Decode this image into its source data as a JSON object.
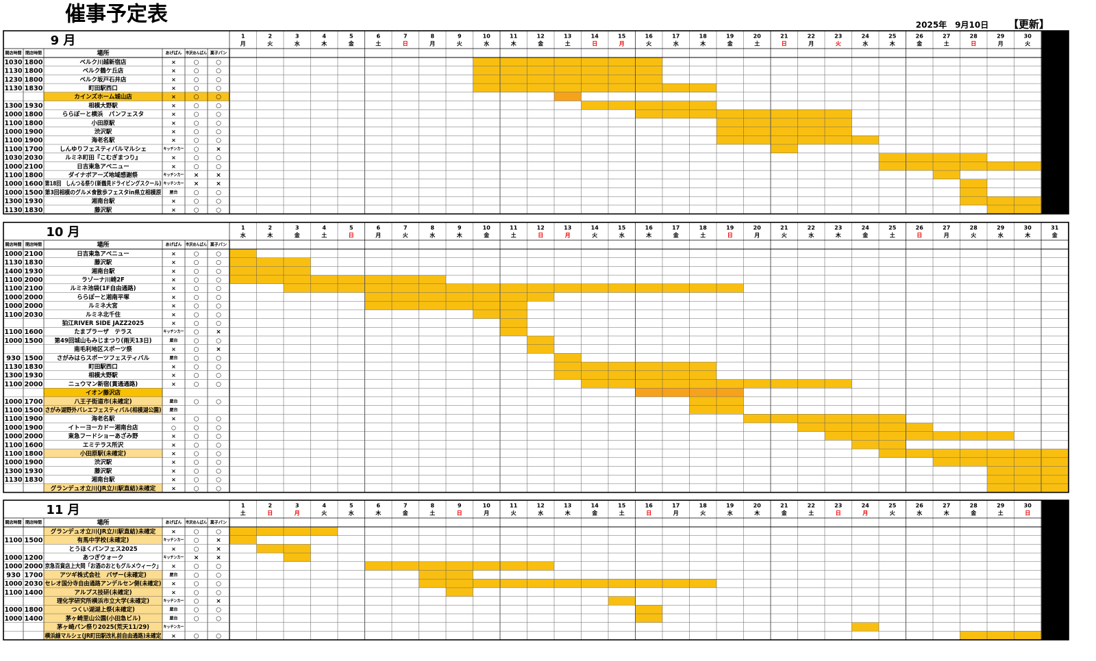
{
  "title": "催事予定表",
  "updated_date": "2025年　9月10日",
  "updated_label": "【更新】",
  "headers": [
    "開店時間",
    "閉店時間",
    "場所",
    "あげぱん",
    "市沢めんぱん",
    "菓子パン"
  ],
  "span_color": "#f9bf10",
  "sections": [
    {
      "month": "9 月",
      "red_days": [
        7,
        14,
        15,
        21,
        23,
        28
      ],
      "days": [
        [
          1,
          "月"
        ],
        [
          2,
          "火"
        ],
        [
          3,
          "水"
        ],
        [
          4,
          "木"
        ],
        [
          5,
          "金"
        ],
        [
          6,
          "土"
        ],
        [
          7,
          "日"
        ],
        [
          8,
          "月"
        ],
        [
          9,
          "火"
        ],
        [
          10,
          "水"
        ],
        [
          11,
          "木"
        ],
        [
          12,
          "金"
        ],
        [
          13,
          "土"
        ],
        [
          14,
          "日"
        ],
        [
          15,
          "月"
        ],
        [
          16,
          "火"
        ],
        [
          17,
          "水"
        ],
        [
          18,
          "木"
        ],
        [
          19,
          "金"
        ],
        [
          20,
          "土"
        ],
        [
          21,
          "日"
        ],
        [
          22,
          "月"
        ],
        [
          23,
          "火"
        ],
        [
          24,
          "水"
        ],
        [
          25,
          "木"
        ],
        [
          26,
          "金"
        ],
        [
          27,
          "土"
        ],
        [
          28,
          "日"
        ],
        [
          29,
          "月"
        ],
        [
          30,
          "火"
        ]
      ],
      "rows": [
        {
          "open": "1030",
          "close": "1800",
          "place": "ベルク川越新宿店",
          "a": "×",
          "b": "○",
          "c": "○",
          "span": [
            10,
            16
          ]
        },
        {
          "open": "1130",
          "close": "1800",
          "place": "ベルク鶴ケ丘店",
          "a": "×",
          "b": "○",
          "c": "○",
          "span": [
            10,
            16
          ]
        },
        {
          "open": "1230",
          "close": "1800",
          "place": "ベルク坂戸石井店",
          "a": "×",
          "b": "○",
          "c": "○",
          "span": [
            10,
            16
          ]
        },
        {
          "open": "1130",
          "close": "1830",
          "place": "町田駅西口",
          "a": "×",
          "b": "○",
          "c": "○",
          "span": [
            10,
            18
          ]
        },
        {
          "place": "カインズホーム城山店",
          "a": "×",
          "b": "○",
          "c": "○",
          "fill": "#f9c21a",
          "fill_wide": true,
          "span": [
            13,
            13
          ],
          "span_color": "#f7a21b"
        },
        {
          "open": "1300",
          "close": "1930",
          "place": "相模大野駅",
          "a": "×",
          "b": "○",
          "c": "○",
          "span": [
            14,
            18
          ]
        },
        {
          "open": "1000",
          "close": "1800",
          "place": "ららぽーと横浜　パンフェスタ",
          "a": "×",
          "b": "○",
          "c": "○",
          "span": [
            16,
            23
          ]
        },
        {
          "open": "1100",
          "close": "1800",
          "place": "小田原駅",
          "a": "×",
          "b": "○",
          "c": "○",
          "span": [
            19,
            23
          ]
        },
        {
          "open": "1000",
          "close": "1900",
          "place": "渋沢駅",
          "a": "×",
          "b": "○",
          "c": "○",
          "span": [
            19,
            23
          ]
        },
        {
          "open": "1100",
          "close": "1900",
          "place": "海老名駅",
          "a": "×",
          "b": "○",
          "c": "○",
          "span": [
            19,
            24
          ]
        },
        {
          "open": "1100",
          "close": "1700",
          "place": "しんゆりフェスティバルマルシェ",
          "a": "キッチンカー",
          "b": "○",
          "c": "×",
          "span": [
            21,
            21
          ]
        },
        {
          "open": "1030",
          "close": "2030",
          "place": "ルミネ町田『こむぎまつり』",
          "a": "×",
          "b": "○",
          "c": "○",
          "span": [
            25,
            28
          ]
        },
        {
          "open": "1000",
          "close": "2100",
          "place": "日吉東急アベニュー",
          "a": "×",
          "b": "○",
          "c": "○",
          "span": [
            25,
            30
          ]
        },
        {
          "open": "1100",
          "close": "1800",
          "place": "ダイナボアーズ地域感謝祭",
          "a": "キッチンカー",
          "b": "×",
          "c": "×",
          "span": [
            27,
            27
          ]
        },
        {
          "open": "1000",
          "close": "1600",
          "place": "第18回　しんつる祭り(新鶴見ドライビングスクール)",
          "a": "キッチンカー",
          "b": "×",
          "c": "×",
          "span": [
            28,
            28
          ]
        },
        {
          "open": "1000",
          "close": "1500",
          "place": "第3回相模のグルメ食散歩フェスタin県立相模原",
          "a": "屋台",
          "b": "○",
          "c": "○",
          "span": [
            28,
            28
          ]
        },
        {
          "open": "1300",
          "close": "1930",
          "place": "湘南台駅",
          "a": "×",
          "b": "○",
          "c": "○",
          "span": [
            28,
            30
          ]
        },
        {
          "open": "1130",
          "close": "1830",
          "place": "藤沢駅",
          "a": "×",
          "b": "○",
          "c": "○",
          "span": [
            29,
            30
          ]
        }
      ]
    },
    {
      "month": "10 月",
      "red_days": [
        5,
        12,
        13,
        19,
        26
      ],
      "days": [
        [
          1,
          "水"
        ],
        [
          2,
          "木"
        ],
        [
          3,
          "金"
        ],
        [
          4,
          "土"
        ],
        [
          5,
          "日"
        ],
        [
          6,
          "月"
        ],
        [
          7,
          "火"
        ],
        [
          8,
          "水"
        ],
        [
          9,
          "木"
        ],
        [
          10,
          "金"
        ],
        [
          11,
          "土"
        ],
        [
          12,
          "日"
        ],
        [
          13,
          "月"
        ],
        [
          14,
          "火"
        ],
        [
          15,
          "水"
        ],
        [
          16,
          "木"
        ],
        [
          17,
          "金"
        ],
        [
          18,
          "土"
        ],
        [
          19,
          "日"
        ],
        [
          20,
          "月"
        ],
        [
          21,
          "火"
        ],
        [
          22,
          "水"
        ],
        [
          23,
          "木"
        ],
        [
          24,
          "金"
        ],
        [
          25,
          "土"
        ],
        [
          26,
          "日"
        ],
        [
          27,
          "月"
        ],
        [
          28,
          "火"
        ],
        [
          29,
          "水"
        ],
        [
          30,
          "木"
        ],
        [
          31,
          "金"
        ]
      ],
      "rows": [
        {
          "open": "1000",
          "close": "2100",
          "place": "日吉東急アベニュー",
          "a": "×",
          "b": "○",
          "c": "○",
          "span": [
            1,
            1
          ]
        },
        {
          "open": "1130",
          "close": "1830",
          "place": "藤沢駅",
          "a": "×",
          "b": "○",
          "c": "○",
          "span": [
            1,
            3
          ]
        },
        {
          "open": "1400",
          "close": "1930",
          "place": "湘南台駅",
          "a": "×",
          "b": "○",
          "c": "○",
          "span": [
            1,
            3
          ]
        },
        {
          "open": "1100",
          "close": "2000",
          "place": "ラゾーナ川崎2F",
          "a": "×",
          "b": "○",
          "c": "○",
          "span": [
            1,
            8
          ]
        },
        {
          "open": "1100",
          "close": "2100",
          "place": "ルミネ池袋(1F自由通路)",
          "a": "×",
          "b": "○",
          "c": "○",
          "span": [
            3,
            19
          ]
        },
        {
          "open": "1000",
          "close": "2000",
          "place": "ららぽーと湘南平塚",
          "a": "×",
          "b": "○",
          "c": "○",
          "span": [
            6,
            12
          ]
        },
        {
          "open": "1000",
          "close": "2000",
          "place": "ルミネ大宮",
          "a": "×",
          "b": "○",
          "c": "○",
          "span": [
            6,
            11
          ]
        },
        {
          "open": "1100",
          "close": "2030",
          "place": "ルミネ北千住",
          "a": "×",
          "b": "○",
          "c": "○",
          "span": [
            10,
            11
          ]
        },
        {
          "place": "狛江RIVER SIDE JAZZ2025",
          "a": "×",
          "b": "○",
          "c": "○",
          "span": [
            11,
            11
          ]
        },
        {
          "open": "1100",
          "close": "1600",
          "place": "たまプラーザ　テラス",
          "a": "キッチンカー",
          "b": "○",
          "c": "×",
          "span": [
            11,
            11
          ]
        },
        {
          "open": "1000",
          "close": "1500",
          "place": "第49回城山もみじまつり(雨天13日)",
          "a": "屋台",
          "b": "○",
          "c": "○",
          "span": [
            12,
            12
          ]
        },
        {
          "place": "南毛利地区スポーツ祭",
          "a": "×",
          "b": "○",
          "c": "×",
          "span": [
            12,
            12
          ]
        },
        {
          "open": "930",
          "close": "1500",
          "place": "さがみはらスポーツフェスティバル",
          "a": "屋台",
          "b": "○",
          "c": "○",
          "span": [
            13,
            13
          ]
        },
        {
          "open": "1130",
          "close": "1830",
          "place": "町田駅西口",
          "a": "×",
          "b": "○",
          "c": "○",
          "span": [
            13,
            18
          ]
        },
        {
          "open": "1300",
          "close": "1930",
          "place": "相模大野駅",
          "a": "×",
          "b": "○",
          "c": "○",
          "span": [
            13,
            18
          ]
        },
        {
          "open": "1100",
          "close": "2000",
          "place": "ニュウマン新宿(貫通通路)",
          "a": "×",
          "b": "○",
          "c": "○",
          "span": [
            14,
            23
          ]
        },
        {
          "place": "イオン藤沢店",
          "fill": "#f9c000",
          "span": [
            16,
            19
          ],
          "span_color": "#f7a21b"
        },
        {
          "open": "1000",
          "close": "1700",
          "place": "八王子街道市(未確定)",
          "a": "屋台",
          "b": "○",
          "c": "○",
          "fill": "#fcdc8e",
          "span": [
            18,
            19
          ]
        },
        {
          "open": "1100",
          "close": "1500",
          "place": "さがみ湖野外バレエフェスティバル(相模湖公園)",
          "a": "屋台",
          "fill": "#fcdc8e",
          "span": [
            18,
            19
          ]
        },
        {
          "open": "1100",
          "close": "1900",
          "place": "海老名駅",
          "a": "×",
          "b": "○",
          "c": "○",
          "span": [
            20,
            25
          ]
        },
        {
          "open": "1000",
          "close": "1900",
          "place": "イトーヨーカドー湘南台店",
          "a": "○",
          "b": "○",
          "c": "○",
          "span": [
            22,
            26
          ]
        },
        {
          "open": "1000",
          "close": "2000",
          "place": "東急フードショーあざみ野",
          "a": "×",
          "b": "○",
          "c": "○",
          "span": [
            23,
            29
          ]
        },
        {
          "open": "1100",
          "close": "1600",
          "place": "エミテラス所沢",
          "a": "×",
          "b": "○",
          "c": "○",
          "span": [
            24,
            25
          ]
        },
        {
          "open": "1100",
          "close": "1800",
          "place": "小田原駅(未確定)",
          "a": "×",
          "b": "○",
          "c": "○",
          "fill": "#fcdc8e",
          "span": [
            25,
            31
          ]
        },
        {
          "open": "1000",
          "close": "1900",
          "place": "渋沢駅",
          "a": "×",
          "b": "○",
          "c": "○",
          "span": [
            27,
            31
          ]
        },
        {
          "open": "1300",
          "close": "1930",
          "place": "藤沢駅",
          "a": "×",
          "b": "○",
          "c": "○",
          "span": [
            29,
            31
          ]
        },
        {
          "open": "1130",
          "close": "1830",
          "place": "湘南台駅",
          "a": "×",
          "b": "○",
          "c": "○",
          "span": [
            29,
            31
          ]
        },
        {
          "place": "グランデュオ立川(JR立川駅直結)未確定",
          "a": "×",
          "b": "○",
          "c": "○",
          "fill": "#fcdc8e",
          "span": [
            29,
            31
          ]
        }
      ]
    },
    {
      "month": "11 月",
      "red_days": [
        2,
        3,
        9,
        16,
        23,
        24,
        30
      ],
      "days": [
        [
          1,
          "土"
        ],
        [
          2,
          "日"
        ],
        [
          3,
          "月"
        ],
        [
          4,
          "火"
        ],
        [
          5,
          "水"
        ],
        [
          6,
          "木"
        ],
        [
          7,
          "金"
        ],
        [
          8,
          "土"
        ],
        [
          9,
          "日"
        ],
        [
          10,
          "月"
        ],
        [
          11,
          "火"
        ],
        [
          12,
          "水"
        ],
        [
          13,
          "木"
        ],
        [
          14,
          "金"
        ],
        [
          15,
          "土"
        ],
        [
          16,
          "日"
        ],
        [
          17,
          "月"
        ],
        [
          18,
          "火"
        ],
        [
          19,
          "水"
        ],
        [
          20,
          "木"
        ],
        [
          21,
          "金"
        ],
        [
          22,
          "土"
        ],
        [
          23,
          "日"
        ],
        [
          24,
          "月"
        ],
        [
          25,
          "火"
        ],
        [
          26,
          "水"
        ],
        [
          27,
          "木"
        ],
        [
          28,
          "金"
        ],
        [
          29,
          "土"
        ],
        [
          30,
          "日"
        ]
      ],
      "rows": [
        {
          "place": "グランデュオ立川(JR立川駅直結)未確定",
          "a": "×",
          "b": "○",
          "c": "○",
          "fill": "#fcdc8e",
          "span": [
            1,
            4
          ]
        },
        {
          "open": "1100",
          "close": "1500",
          "place": "有馬中学校(未確定)",
          "a": "キッチンカー",
          "b": "○",
          "c": "×",
          "fill": "#fcdc8e",
          "span": [
            1,
            1
          ]
        },
        {
          "place": "とうほくパンフェス2025",
          "a": "×",
          "b": "○",
          "c": "×",
          "span": [
            2,
            3
          ]
        },
        {
          "open": "1000",
          "close": "1200",
          "place": "あつぎウォーク",
          "a": "キッチンカー",
          "b": "×",
          "c": "×",
          "span": [
            3,
            3
          ]
        },
        {
          "open": "1000",
          "close": "2000",
          "place": "京急百貨店上大岡「お酒のおともグルメウィーク」",
          "a": "×",
          "b": "○",
          "c": "○",
          "span": [
            6,
            12
          ]
        },
        {
          "open": "930",
          "close": "1700",
          "place": "アツギ株式会社　バザー(未確定)",
          "a": "屋台",
          "b": "○",
          "c": "○",
          "fill": "#fcdc8e",
          "span": [
            8,
            9
          ]
        },
        {
          "open": "1000",
          "close": "2030",
          "place": "セレオ国分寺自由通路アンデルセン側(未確定)",
          "a": "×",
          "b": "○",
          "c": "○",
          "fill": "#fcdc8e",
          "span": [
            8,
            18
          ]
        },
        {
          "open": "1100",
          "close": "1400",
          "place": "アルプス技研(未確定)",
          "a": "×",
          "b": "○",
          "c": "○",
          "fill": "#fcdc8e",
          "span": [
            9,
            9
          ]
        },
        {
          "place": "理化学研究所横浜市立大学(未確定)",
          "a": "キッチンカー",
          "b": "○",
          "c": "×",
          "fill": "#fcdc8e",
          "span": [
            15,
            15
          ]
        },
        {
          "open": "1000",
          "close": "1800",
          "place": "つくい湖湖上祭(未確定)",
          "a": "屋台",
          "b": "○",
          "c": "○",
          "fill": "#fcdc8e",
          "span": [
            16,
            16
          ]
        },
        {
          "open": "1000",
          "close": "1400",
          "place": "茅ヶ崎里山公園(小田急ビル)",
          "a": "屋台",
          "b": "○",
          "c": "○",
          "fill": "#fcdc8e",
          "span": [
            16,
            16
          ]
        },
        {
          "place": "茅ヶ崎パン祭り2025(荒天11/29)",
          "a": "キッチンカー",
          "fill": "#fcdc8e",
          "span": [
            24,
            24
          ]
        },
        {
          "place": "横浜線マルシェ(JR町田駅改札前自由通路)未確定",
          "a": "×",
          "b": "○",
          "c": "○",
          "fill": "#fcdc8e",
          "span": [
            28,
            30
          ]
        }
      ]
    }
  ]
}
